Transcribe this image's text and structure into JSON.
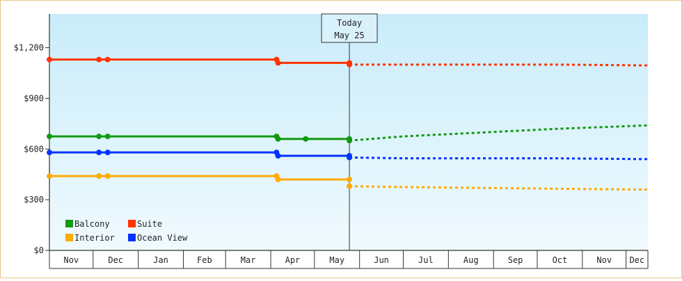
{
  "chart_data": {
    "type": "line",
    "title": "",
    "xlabel": "",
    "ylabel": "",
    "ylim": [
      0,
      1400
    ],
    "y_ticks": [
      {
        "value": 0,
        "label": "$0"
      },
      {
        "value": 300,
        "label": "$300"
      },
      {
        "value": 600,
        "label": "$600"
      },
      {
        "value": 900,
        "label": "$900"
      },
      {
        "value": 1200,
        "label": "$1,200"
      }
    ],
    "x_axis": {
      "start": "2023-11-01",
      "end": "2024-12-16",
      "ticks": [
        {
          "label": "Nov",
          "start": "2023-11-01",
          "end": "2023-12-01"
        },
        {
          "label": "Dec",
          "start": "2023-12-01",
          "end": "2024-01-01"
        },
        {
          "label": "Jan",
          "start": "2024-01-01",
          "end": "2024-02-01"
        },
        {
          "label": "Feb",
          "start": "2024-02-01",
          "end": "2024-03-01"
        },
        {
          "label": "Mar",
          "start": "2024-03-01",
          "end": "2024-04-01"
        },
        {
          "label": "Apr",
          "start": "2024-04-01",
          "end": "2024-05-01"
        },
        {
          "label": "May",
          "start": "2024-05-01",
          "end": "2024-06-01"
        },
        {
          "label": "Jun",
          "start": "2024-06-01",
          "end": "2024-07-01"
        },
        {
          "label": "Jul",
          "start": "2024-07-01",
          "end": "2024-08-01"
        },
        {
          "label": "Aug",
          "start": "2024-08-01",
          "end": "2024-09-01"
        },
        {
          "label": "Sep",
          "start": "2024-09-01",
          "end": "2024-10-01"
        },
        {
          "label": "Oct",
          "start": "2024-10-01",
          "end": "2024-11-01"
        },
        {
          "label": "Nov",
          "start": "2024-11-01",
          "end": "2024-12-01"
        },
        {
          "label": "Dec",
          "start": "2024-12-01",
          "end": "2024-12-16"
        }
      ]
    },
    "today": {
      "line1": "Today",
      "line2": "May 25",
      "date": "2024-05-25"
    },
    "legend_position": "bottom-left",
    "series": [
      {
        "name": "Suite",
        "color": "#ff3300",
        "points": [
          [
            "2023-11-01",
            1130
          ],
          [
            "2023-12-05",
            1130
          ],
          [
            "2023-12-11",
            1130
          ],
          [
            "2024-04-05",
            1130
          ],
          [
            "2024-04-06",
            1110
          ],
          [
            "2024-05-25",
            1110
          ]
        ],
        "forecast": [
          [
            "2024-05-25",
            1100
          ],
          [
            "2024-07-01",
            1100
          ],
          [
            "2024-10-15",
            1100
          ],
          [
            "2024-12-16",
            1095
          ]
        ]
      },
      {
        "name": "Balcony",
        "color": "#119911",
        "points": [
          [
            "2023-11-01",
            675
          ],
          [
            "2023-12-05",
            675
          ],
          [
            "2023-12-11",
            675
          ],
          [
            "2024-04-05",
            675
          ],
          [
            "2024-04-06",
            660
          ],
          [
            "2024-04-25",
            660
          ],
          [
            "2024-05-25",
            660
          ]
        ],
        "forecast": [
          [
            "2024-05-25",
            650
          ],
          [
            "2024-07-01",
            675
          ],
          [
            "2024-10-15",
            720
          ],
          [
            "2024-12-16",
            740
          ]
        ]
      },
      {
        "name": "Ocean View",
        "color": "#0033ff",
        "points": [
          [
            "2023-11-01",
            580
          ],
          [
            "2023-12-05",
            580
          ],
          [
            "2023-12-11",
            580
          ],
          [
            "2024-04-05",
            580
          ],
          [
            "2024-04-06",
            560
          ],
          [
            "2024-05-25",
            560
          ]
        ],
        "forecast": [
          [
            "2024-05-25",
            550
          ],
          [
            "2024-07-01",
            545
          ],
          [
            "2024-10-15",
            545
          ],
          [
            "2024-12-16",
            540
          ]
        ]
      },
      {
        "name": "Interior",
        "color": "#ffaa00",
        "points": [
          [
            "2023-11-01",
            440
          ],
          [
            "2023-12-05",
            440
          ],
          [
            "2023-12-11",
            440
          ],
          [
            "2024-04-05",
            440
          ],
          [
            "2024-04-06",
            420
          ],
          [
            "2024-05-25",
            420
          ]
        ],
        "forecast": [
          [
            "2024-05-25",
            380
          ],
          [
            "2024-07-01",
            375
          ],
          [
            "2024-10-15",
            365
          ],
          [
            "2024-12-16",
            360
          ]
        ]
      }
    ],
    "legend": [
      {
        "name": "Balcony",
        "color": "#119911"
      },
      {
        "name": "Suite",
        "color": "#ff3300"
      },
      {
        "name": "Interior",
        "color": "#ffaa00"
      },
      {
        "name": "Ocean View",
        "color": "#0033ff"
      }
    ]
  }
}
